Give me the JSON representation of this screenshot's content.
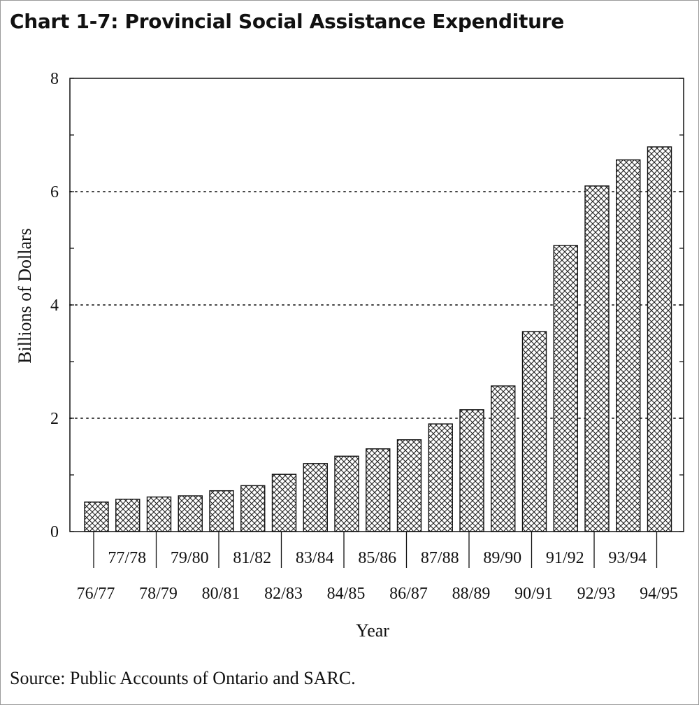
{
  "chart_data": {
    "type": "bar",
    "title": "Chart 1-7: Provincial Social Assistance Expenditure",
    "xlabel": "Year",
    "ylabel": "Billions of Dollars",
    "source": "Source: Public Accounts of Ontario and SARC.",
    "categories": [
      "76/77",
      "77/78",
      "78/79",
      "79/80",
      "80/81",
      "81/82",
      "82/83",
      "83/84",
      "84/85",
      "85/86",
      "86/87",
      "87/88",
      "88/89",
      "89/90",
      "90/91",
      "91/92",
      "92/93",
      "93/94",
      "94/95"
    ],
    "values": [
      0.52,
      0.57,
      0.61,
      0.63,
      0.72,
      0.81,
      1.01,
      1.2,
      1.33,
      1.46,
      1.62,
      1.9,
      2.15,
      2.57,
      3.53,
      5.05,
      6.1,
      6.56,
      6.79
    ],
    "ylim": [
      0,
      8
    ],
    "yticks": [
      0,
      2,
      4,
      6,
      8
    ],
    "grid": "dotted horizontal at 2, 4, 6",
    "bar_fill": "crosshatch",
    "colors": {
      "bar_stroke": "#111111",
      "hatch": "#222222",
      "axis": "#111111",
      "grid": "#444444"
    }
  }
}
